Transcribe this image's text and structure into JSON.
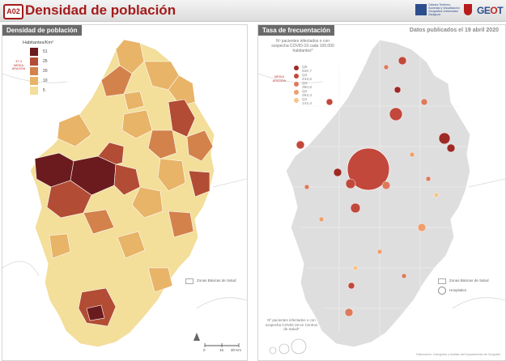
{
  "header": {
    "code": "A02",
    "title": "Densidad de población",
    "institution": "Cátedra Territorio, Sociedad y Visualización Geográfica Universidad Zaragoza",
    "logo": "GEOT"
  },
  "left": {
    "tab": "Densidad de población",
    "legend_title": "Habitantes/Km²",
    "scale": [
      {
        "label": "51",
        "color": "#6b1b1e"
      },
      {
        "label": "25",
        "color": "#b24c35"
      },
      {
        "label": "20",
        "color": "#d3824c"
      },
      {
        "label": "10",
        "color": "#e8b468"
      },
      {
        "label": "5",
        "color": "#f3de9a"
      }
    ],
    "mean_note": "37,3 MEDIA ARAGÓN",
    "zbs_label": "Zonas Básicas de Salud",
    "scale_bar": {
      "zero": "0",
      "mid": "15",
      "end": "30 Km"
    }
  },
  "right": {
    "tab": "Tasa de frecuentación",
    "date": "Datos publicados el 19 abril 2020",
    "legend_title": "Nº pacientes infectados o con sospecha COVID-19 cada 100.000 habitantes*",
    "quintiles": [
      {
        "label": "Q5",
        "value": "640,7",
        "color": "#9d2a25"
      },
      {
        "label": "Q4",
        "value": "443,6",
        "color": "#c2483b"
      },
      {
        "label": "Q3",
        "value": "360,6",
        "color": "#dd7a5c"
      },
      {
        "label": "Q2",
        "value": "263,4",
        "color": "#ee9f6d"
      },
      {
        "label": "Q1",
        "value": "143,4",
        "color": "#f6c58c"
      }
    ],
    "mean_note": "MEDIA ARAGÓN",
    "zbs_label": "Zonas Básicas de Salud",
    "hospital_label": "Hospitales",
    "bottom_legend": "Nº pacientes infectados o con sospecha COVID-19 en Centros de Salud*",
    "credit": "Elaboración: Cartografía y Análisis del Departamento de Geografía"
  },
  "colors": {
    "accent": "#a51b1b",
    "tab_bg": "#6a6a6a",
    "map_base_right": "#dedede"
  }
}
